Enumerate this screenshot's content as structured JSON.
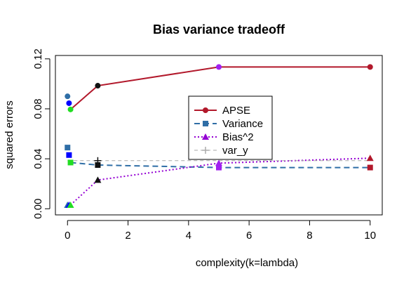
{
  "chart_data": {
    "type": "line",
    "title": "Bias variance tradeoff",
    "xlabel": "complexity(k=lambda)",
    "ylabel": "squared errors",
    "xlim": [
      -0.4,
      10.4
    ],
    "ylim": [
      -0.0049,
      0.1227
    ],
    "x_ticks": [
      0,
      2,
      4,
      6,
      8,
      10
    ],
    "y_ticks": [
      0.0,
      0.04,
      0.08,
      0.12
    ],
    "x_tick_labels": [
      "0",
      "2",
      "4",
      "6",
      "8",
      "10"
    ],
    "y_tick_labels": [
      "0.00",
      "0.04",
      "0.08",
      "0.12"
    ],
    "grid": false,
    "legend_position": "center",
    "series": [
      {
        "name": "APSE",
        "color": "#b2182b",
        "line": "solid",
        "marker": "circle",
        "x": [
          0.1,
          1,
          5,
          10
        ],
        "y": [
          0.0795,
          0.0985,
          0.1135,
          0.1135
        ]
      },
      {
        "name": "Variance",
        "color": "#2f6ea6",
        "line": "dashed",
        "marker": "square",
        "x": [
          0.1,
          1,
          5,
          10
        ],
        "y": [
          0.037,
          0.035,
          0.033,
          0.033
        ]
      },
      {
        "name": "Bias^2",
        "color": "#9400d3",
        "line": "dotted",
        "marker": "triangle",
        "x": [
          0.1,
          1,
          5,
          10
        ],
        "y": [
          0.003,
          0.023,
          0.0365,
          0.0405
        ]
      },
      {
        "name": "var_y",
        "color": "#aaaaaa",
        "line": "dashed-thin",
        "marker": "plus",
        "x": [
          0,
          10
        ],
        "y": [
          0.0385,
          0.0385
        ]
      }
    ],
    "extra_points": [
      {
        "x": 0.0,
        "y": 0.09,
        "marker": "circle",
        "color": "#2f6ea6"
      },
      {
        "x": 0.05,
        "y": 0.0845,
        "marker": "circle",
        "color": "#0000ff"
      },
      {
        "x": 0.1,
        "y": 0.0795,
        "marker": "circle",
        "color": "#22dd22"
      },
      {
        "x": 1.0,
        "y": 0.0985,
        "marker": "circle",
        "color": "#111111"
      },
      {
        "x": 5.0,
        "y": 0.1135,
        "marker": "circle",
        "color": "#a020f0"
      },
      {
        "x": 10.0,
        "y": 0.1135,
        "marker": "circle",
        "color": "#b2182b"
      },
      {
        "x": 0.0,
        "y": 0.049,
        "marker": "square",
        "color": "#2f6ea6"
      },
      {
        "x": 0.05,
        "y": 0.043,
        "marker": "square",
        "color": "#0000ff"
      },
      {
        "x": 0.1,
        "y": 0.037,
        "marker": "square",
        "color": "#22dd22"
      },
      {
        "x": 1.0,
        "y": 0.035,
        "marker": "square",
        "color": "#111111"
      },
      {
        "x": 5.0,
        "y": 0.033,
        "marker": "square",
        "color": "#a020f0"
      },
      {
        "x": 10.0,
        "y": 0.033,
        "marker": "square",
        "color": "#b2182b"
      },
      {
        "x": 0.0,
        "y": 0.003,
        "marker": "triangle",
        "color": "#2f6ea6"
      },
      {
        "x": 0.05,
        "y": 0.003,
        "marker": "triangle",
        "color": "#0000ff"
      },
      {
        "x": 0.1,
        "y": 0.003,
        "marker": "triangle",
        "color": "#22dd22"
      },
      {
        "x": 1.0,
        "y": 0.023,
        "marker": "triangle",
        "color": "#111111"
      },
      {
        "x": 5.0,
        "y": 0.0365,
        "marker": "triangle",
        "color": "#a020f0"
      },
      {
        "x": 10.0,
        "y": 0.0405,
        "marker": "triangle",
        "color": "#b2182b"
      },
      {
        "x": 1.0,
        "y": 0.0385,
        "marker": "plus",
        "color": "#111111"
      }
    ]
  }
}
